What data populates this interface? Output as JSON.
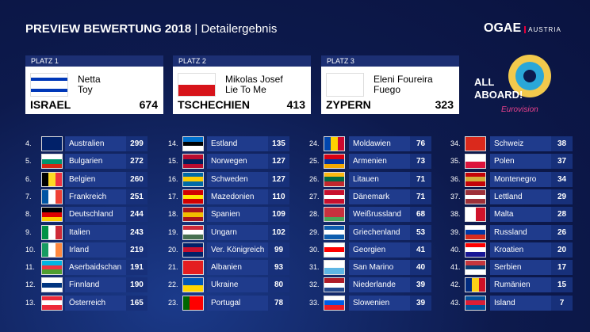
{
  "header": {
    "title": "PREVIEW BEWERTUNG 2018",
    "separator": "|",
    "subtitle": "Detailergebnis",
    "brand": "OGAE",
    "brand_sub": "AUSTRIA"
  },
  "logo": {
    "line1": "ALL",
    "line2": "ABOARD!",
    "line3": "Eurovision"
  },
  "podium": [
    {
      "place": "PLATZ 1",
      "artist": "Netta",
      "song": "Toy",
      "country": "ISRAEL",
      "points": 674
    },
    {
      "place": "PLATZ 2",
      "artist": "Mikolas Josef",
      "song": "Lie To Me",
      "country": "TSCHECHIEN",
      "points": 413
    },
    {
      "place": "PLATZ 3",
      "artist": "Eleni Foureira",
      "song": "Fuego",
      "country": "ZYPERN",
      "points": 323
    }
  ],
  "ranking": [
    {
      "rank": "4.",
      "country": "Australien",
      "points": 299
    },
    {
      "rank": "5.",
      "country": "Bulgarien",
      "points": 272
    },
    {
      "rank": "6.",
      "country": "Belgien",
      "points": 260
    },
    {
      "rank": "7.",
      "country": "Frankreich",
      "points": 251
    },
    {
      "rank": "8.",
      "country": "Deutschland",
      "points": 244
    },
    {
      "rank": "9.",
      "country": "Italien",
      "points": 243
    },
    {
      "rank": "10.",
      "country": "Irland",
      "points": 219
    },
    {
      "rank": "11.",
      "country": "Aserbaidschan",
      "points": 191
    },
    {
      "rank": "12.",
      "country": "Finnland",
      "points": 190
    },
    {
      "rank": "13.",
      "country": "Österreich",
      "points": 165
    },
    {
      "rank": "14.",
      "country": "Estland",
      "points": 135
    },
    {
      "rank": "15.",
      "country": "Norwegen",
      "points": 127
    },
    {
      "rank": "16.",
      "country": "Schweden",
      "points": 127
    },
    {
      "rank": "17.",
      "country": "Mazedonien",
      "points": 110
    },
    {
      "rank": "18.",
      "country": "Spanien",
      "points": 109
    },
    {
      "rank": "19.",
      "country": "Ungarn",
      "points": 102
    },
    {
      "rank": "20.",
      "country": "Ver. Königreich",
      "points": 99
    },
    {
      "rank": "21.",
      "country": "Albanien",
      "points": 93
    },
    {
      "rank": "22.",
      "country": "Ukraine",
      "points": 80
    },
    {
      "rank": "23.",
      "country": "Portugal",
      "points": 78
    },
    {
      "rank": "24.",
      "country": "Moldawien",
      "points": 76
    },
    {
      "rank": "25.",
      "country": "Armenien",
      "points": 73
    },
    {
      "rank": "26.",
      "country": "Litauen",
      "points": 71
    },
    {
      "rank": "27.",
      "country": "Dänemark",
      "points": 71
    },
    {
      "rank": "28.",
      "country": "Weißrussland",
      "points": 68
    },
    {
      "rank": "29.",
      "country": "Griechenland",
      "points": 53
    },
    {
      "rank": "30.",
      "country": "Georgien",
      "points": 41
    },
    {
      "rank": "31.",
      "country": "San Marino",
      "points": 40
    },
    {
      "rank": "32.",
      "country": "Niederlande",
      "points": 39
    },
    {
      "rank": "33.",
      "country": "Slowenien",
      "points": 39
    },
    {
      "rank": "34.",
      "country": "Schweiz",
      "points": 38
    },
    {
      "rank": "35.",
      "country": "Polen",
      "points": 37
    },
    {
      "rank": "36.",
      "country": "Montenegro",
      "points": 34
    },
    {
      "rank": "37.",
      "country": "Lettland",
      "points": 29
    },
    {
      "rank": "38.",
      "country": "Malta",
      "points": 28
    },
    {
      "rank": "39.",
      "country": "Russland",
      "points": 26
    },
    {
      "rank": "40.",
      "country": "Kroatien",
      "points": 20
    },
    {
      "rank": "41.",
      "country": "Serbien",
      "points": 17
    },
    {
      "rank": "42.",
      "country": "Rumänien",
      "points": 15
    },
    {
      "rank": "43.",
      "country": "Island",
      "points": 7
    }
  ]
}
